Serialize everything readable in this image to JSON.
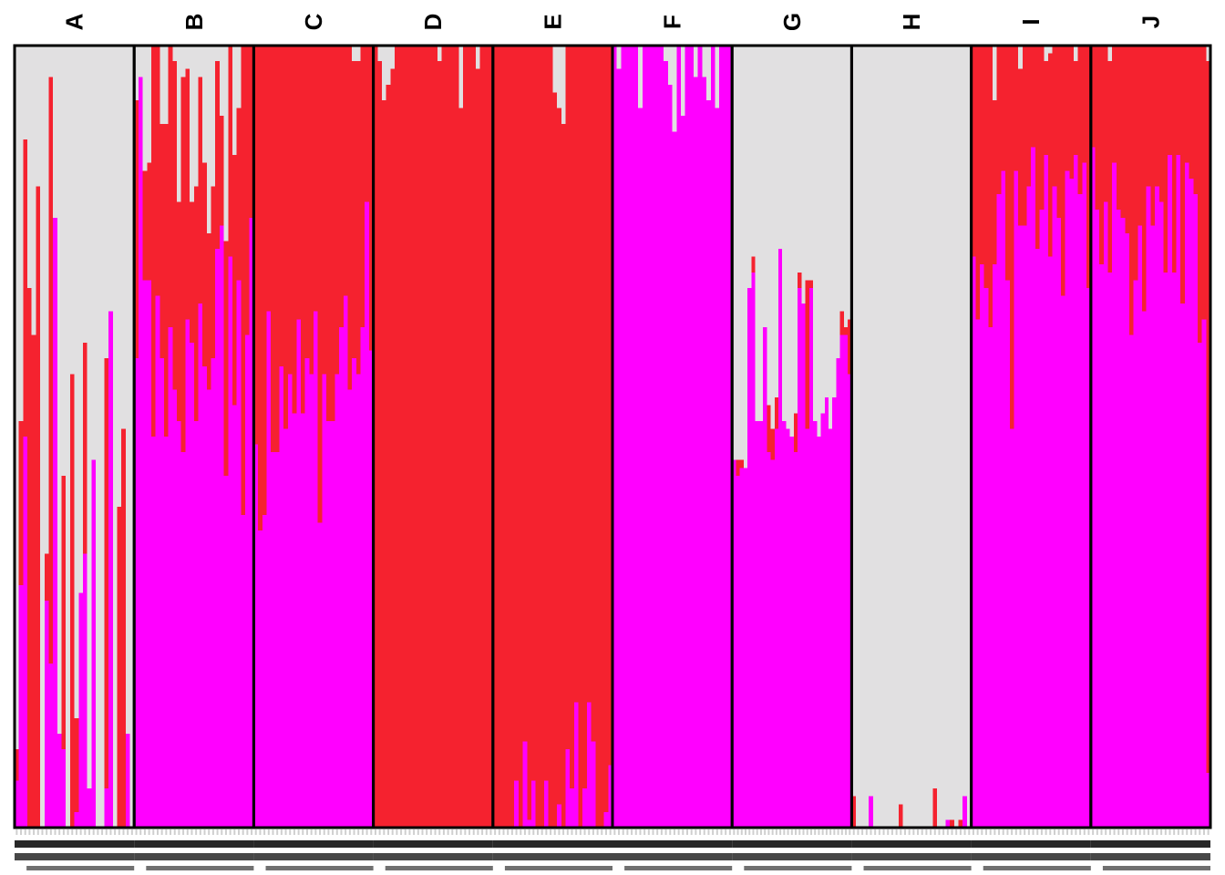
{
  "chart_data": {
    "type": "bar",
    "stacked": true,
    "title": "",
    "xlabel": "",
    "ylabel": "",
    "ylim": [
      0,
      1
    ],
    "grid": false,
    "legend": "none",
    "colors": {
      "cluster1": "#ff00ff",
      "cluster2": "#f5222f",
      "cluster3": "#e1e0e1"
    },
    "series_order": [
      "cluster1",
      "cluster2",
      "cluster3"
    ],
    "groups": [
      {
        "label": "A",
        "individuals": [
          [
            0.06,
            0.04
          ],
          [
            0.31,
            0.21
          ],
          [
            0.5,
            0.38
          ],
          [
            0.0,
            0.69
          ],
          [
            0.0,
            0.63
          ],
          [
            0.0,
            0.82
          ],
          [
            0.0,
            0.0
          ],
          [
            0.29,
            0.06
          ],
          [
            0.21,
            0.75
          ],
          [
            0.78,
            0.0
          ],
          [
            0.12,
            0.0
          ],
          [
            0.1,
            0.35
          ],
          [
            0.0,
            0.0
          ],
          [
            0.0,
            0.58
          ],
          [
            0.02,
            0.12
          ],
          [
            0.3,
            0.0
          ],
          [
            0.35,
            0.27
          ],
          [
            0.05,
            0.0
          ],
          [
            0.47,
            0.0
          ],
          [
            0.0,
            0.0
          ],
          [
            0.0,
            0.0
          ],
          [
            0.05,
            0.55
          ],
          [
            0.66,
            0.0
          ],
          [
            0.0,
            0.0
          ],
          [
            0.0,
            0.41
          ],
          [
            0.0,
            0.51
          ],
          [
            0.12,
            0.0
          ],
          [
            0.0,
            0.0
          ]
        ]
      },
      {
        "label": "B",
        "individuals": [
          [
            0.6,
            0.33
          ],
          [
            0.96,
            0.0
          ],
          [
            0.7,
            0.14
          ],
          [
            0.7,
            0.15
          ],
          [
            0.5,
            0.5
          ],
          [
            0.68,
            0.32
          ],
          [
            0.6,
            0.3
          ],
          [
            0.5,
            0.4
          ],
          [
            0.64,
            0.36
          ],
          [
            0.56,
            0.42
          ],
          [
            0.52,
            0.28
          ],
          [
            0.48,
            0.48
          ],
          [
            0.65,
            0.32
          ],
          [
            0.62,
            0.18
          ],
          [
            0.52,
            0.3
          ],
          [
            0.67,
            0.29
          ],
          [
            0.59,
            0.26
          ],
          [
            0.56,
            0.2
          ],
          [
            0.6,
            0.22
          ],
          [
            0.74,
            0.24
          ],
          [
            0.77,
            0.14
          ],
          [
            0.45,
            0.3
          ],
          [
            0.73,
            0.27
          ],
          [
            0.54,
            0.32
          ],
          [
            0.7,
            0.22
          ],
          [
            0.4,
            0.6
          ],
          [
            0.63,
            0.37
          ],
          [
            0.78,
            0.22
          ]
        ]
      },
      {
        "label": "C",
        "individuals": [
          [
            0.49,
            0.51
          ],
          [
            0.38,
            0.62
          ],
          [
            0.4,
            0.6
          ],
          [
            0.66,
            0.34
          ],
          [
            0.48,
            0.52
          ],
          [
            0.48,
            0.52
          ],
          [
            0.59,
            0.41
          ],
          [
            0.51,
            0.49
          ],
          [
            0.58,
            0.42
          ],
          [
            0.53,
            0.47
          ],
          [
            0.65,
            0.35
          ],
          [
            0.53,
            0.47
          ],
          [
            0.6,
            0.4
          ],
          [
            0.58,
            0.42
          ],
          [
            0.66,
            0.34
          ],
          [
            0.39,
            0.61
          ],
          [
            0.58,
            0.42
          ],
          [
            0.52,
            0.48
          ],
          [
            0.52,
            0.48
          ],
          [
            0.58,
            0.42
          ],
          [
            0.64,
            0.36
          ],
          [
            0.68,
            0.32
          ],
          [
            0.56,
            0.44
          ],
          [
            0.6,
            0.38
          ],
          [
            0.58,
            0.4
          ],
          [
            0.64,
            0.36
          ],
          [
            0.8,
            0.2
          ],
          [
            0.61,
            0.39
          ]
        ]
      },
      {
        "label": "D",
        "individuals": [
          [
            0.0,
            1.0
          ],
          [
            0.0,
            0.98
          ],
          [
            0.0,
            0.93
          ],
          [
            0.0,
            0.95
          ],
          [
            0.0,
            0.97
          ],
          [
            0.0,
            1.0
          ],
          [
            0.0,
            1.0
          ],
          [
            0.0,
            1.0
          ],
          [
            0.0,
            1.0
          ],
          [
            0.0,
            1.0
          ],
          [
            0.0,
            1.0
          ],
          [
            0.0,
            1.0
          ],
          [
            0.0,
            1.0
          ],
          [
            0.0,
            1.0
          ],
          [
            0.0,
            1.0
          ],
          [
            0.0,
            0.98
          ],
          [
            0.0,
            1.0
          ],
          [
            0.0,
            1.0
          ],
          [
            0.0,
            1.0
          ],
          [
            0.0,
            1.0
          ],
          [
            0.0,
            0.92
          ],
          [
            0.0,
            1.0
          ],
          [
            0.0,
            1.0
          ],
          [
            0.0,
            1.0
          ],
          [
            0.0,
            0.97
          ],
          [
            0.0,
            1.0
          ],
          [
            0.0,
            1.0
          ],
          [
            0.0,
            1.0
          ]
        ]
      },
      {
        "label": "E",
        "individuals": [
          [
            0.0,
            1.0
          ],
          [
            0.0,
            1.0
          ],
          [
            0.0,
            1.0
          ],
          [
            0.0,
            1.0
          ],
          [
            0.0,
            1.0
          ],
          [
            0.06,
            0.94
          ],
          [
            0.0,
            1.0
          ],
          [
            0.11,
            0.89
          ],
          [
            0.01,
            0.99
          ],
          [
            0.06,
            0.94
          ],
          [
            0.0,
            1.0
          ],
          [
            0.0,
            1.0
          ],
          [
            0.06,
            0.94
          ],
          [
            0.0,
            1.0
          ],
          [
            0.0,
            0.94
          ],
          [
            0.03,
            0.89
          ],
          [
            0.0,
            0.9
          ],
          [
            0.1,
            0.9
          ],
          [
            0.05,
            0.95
          ],
          [
            0.16,
            0.84
          ],
          [
            0.0,
            1.0
          ],
          [
            0.05,
            0.95
          ],
          [
            0.16,
            0.84
          ],
          [
            0.11,
            0.89
          ],
          [
            0.0,
            1.0
          ],
          [
            0.0,
            1.0
          ],
          [
            0.02,
            0.98
          ],
          [
            0.08,
            0.92
          ]
        ]
      },
      {
        "label": "F",
        "individuals": [
          [
            1.0,
            0.0
          ],
          [
            0.97,
            0.0
          ],
          [
            1.0,
            0.0
          ],
          [
            1.0,
            0.0
          ],
          [
            1.0,
            0.0
          ],
          [
            1.0,
            0.0
          ],
          [
            0.92,
            0.0
          ],
          [
            1.0,
            0.0
          ],
          [
            1.0,
            0.0
          ],
          [
            1.0,
            0.0
          ],
          [
            1.0,
            0.0
          ],
          [
            1.0,
            0.0
          ],
          [
            0.98,
            0.0
          ],
          [
            0.95,
            0.0
          ],
          [
            0.89,
            0.0
          ],
          [
            1.0,
            0.0
          ],
          [
            0.91,
            0.0
          ],
          [
            1.0,
            0.0
          ],
          [
            1.0,
            0.0
          ],
          [
            0.96,
            0.0
          ],
          [
            1.0,
            0.0
          ],
          [
            0.96,
            0.0
          ],
          [
            0.93,
            0.0
          ],
          [
            1.0,
            0.0
          ],
          [
            0.92,
            0.0
          ],
          [
            1.0,
            0.0
          ],
          [
            1.0,
            0.0
          ],
          [
            1.0,
            0.0
          ]
        ]
      },
      {
        "label": "G",
        "individuals": [
          [
            0.47,
            0.0
          ],
          [
            0.45,
            0.02
          ],
          [
            0.46,
            0.01
          ],
          [
            0.46,
            0.0
          ],
          [
            0.69,
            0.0
          ],
          [
            0.71,
            0.02
          ],
          [
            0.52,
            0.0
          ],
          [
            0.52,
            0.0
          ],
          [
            0.64,
            0.0
          ],
          [
            0.48,
            0.06
          ],
          [
            0.47,
            0.04
          ],
          [
            0.51,
            0.04
          ],
          [
            0.74,
            0.0
          ],
          [
            0.52,
            0.0
          ],
          [
            0.51,
            0.0
          ],
          [
            0.5,
            0.0
          ],
          [
            0.48,
            0.05
          ],
          [
            0.69,
            0.02
          ],
          [
            0.67,
            0.0
          ],
          [
            0.51,
            0.19
          ],
          [
            0.69,
            0.01
          ],
          [
            0.52,
            0.0
          ],
          [
            0.5,
            0.0
          ],
          [
            0.53,
            0.0
          ],
          [
            0.55,
            0.0
          ],
          [
            0.51,
            0.0
          ],
          [
            0.55,
            0.0
          ],
          [
            0.6,
            0.0
          ],
          [
            0.63,
            0.03
          ],
          [
            0.63,
            0.01
          ],
          [
            0.58,
            0.07
          ]
        ]
      },
      {
        "label": "H",
        "individuals": [
          [
            0.0,
            0.04
          ],
          [
            0.0,
            0.0
          ],
          [
            0.0,
            0.0
          ],
          [
            0.0,
            0.0
          ],
          [
            0.04,
            0.0
          ],
          [
            0.0,
            0.0
          ],
          [
            0.0,
            0.0
          ],
          [
            0.0,
            0.0
          ],
          [
            0.0,
            0.0
          ],
          [
            0.0,
            0.0
          ],
          [
            0.0,
            0.0
          ],
          [
            0.0,
            0.03
          ],
          [
            0.0,
            0.0
          ],
          [
            0.0,
            0.0
          ],
          [
            0.0,
            0.0
          ],
          [
            0.0,
            0.0
          ],
          [
            0.0,
            0.0
          ],
          [
            0.0,
            0.0
          ],
          [
            0.0,
            0.0
          ],
          [
            0.0,
            0.05
          ],
          [
            0.0,
            0.0
          ],
          [
            0.0,
            0.0
          ],
          [
            0.01,
            0.0
          ],
          [
            0.0,
            0.01
          ],
          [
            0.0,
            0.0
          ],
          [
            0.0,
            0.01
          ],
          [
            0.04,
            0.0
          ],
          [
            0.0,
            0.0
          ]
        ]
      },
      {
        "label": "I",
        "individuals": [
          [
            0.73,
            0.27
          ],
          [
            0.65,
            0.35
          ],
          [
            0.72,
            0.28
          ],
          [
            0.69,
            0.31
          ],
          [
            0.64,
            0.36
          ],
          [
            0.72,
            0.21
          ],
          [
            0.81,
            0.19
          ],
          [
            0.84,
            0.16
          ],
          [
            0.7,
            0.3
          ],
          [
            0.51,
            0.49
          ],
          [
            0.84,
            0.16
          ],
          [
            0.77,
            0.2
          ],
          [
            0.77,
            0.23
          ],
          [
            0.82,
            0.18
          ],
          [
            0.87,
            0.13
          ],
          [
            0.74,
            0.26
          ],
          [
            0.79,
            0.21
          ],
          [
            0.86,
            0.12
          ],
          [
            0.73,
            0.26
          ],
          [
            0.82,
            0.18
          ],
          [
            0.78,
            0.22
          ],
          [
            0.68,
            0.32
          ],
          [
            0.84,
            0.16
          ],
          [
            0.83,
            0.17
          ],
          [
            0.86,
            0.12
          ],
          [
            0.81,
            0.19
          ],
          [
            0.85,
            0.15
          ],
          [
            0.69,
            0.31
          ]
        ]
      },
      {
        "label": "J",
        "individuals": [
          [
            0.87,
            0.13
          ],
          [
            0.79,
            0.21
          ],
          [
            0.72,
            0.28
          ],
          [
            0.8,
            0.2
          ],
          [
            0.71,
            0.27
          ],
          [
            0.85,
            0.15
          ],
          [
            0.79,
            0.21
          ],
          [
            0.78,
            0.22
          ],
          [
            0.76,
            0.24
          ],
          [
            0.63,
            0.37
          ],
          [
            0.7,
            0.3
          ],
          [
            0.77,
            0.23
          ],
          [
            0.66,
            0.34
          ],
          [
            0.82,
            0.18
          ],
          [
            0.77,
            0.23
          ],
          [
            0.82,
            0.18
          ],
          [
            0.8,
            0.2
          ],
          [
            0.71,
            0.29
          ],
          [
            0.86,
            0.14
          ],
          [
            0.71,
            0.29
          ],
          [
            0.86,
            0.14
          ],
          [
            0.67,
            0.33
          ],
          [
            0.85,
            0.15
          ],
          [
            0.83,
            0.17
          ],
          [
            0.81,
            0.19
          ],
          [
            0.62,
            0.38
          ],
          [
            0.65,
            0.35
          ],
          [
            0.07,
            0.91
          ]
        ]
      }
    ],
    "x_tick_labels": "individual sample IDs rotated 90°, overlapping and illegible"
  }
}
